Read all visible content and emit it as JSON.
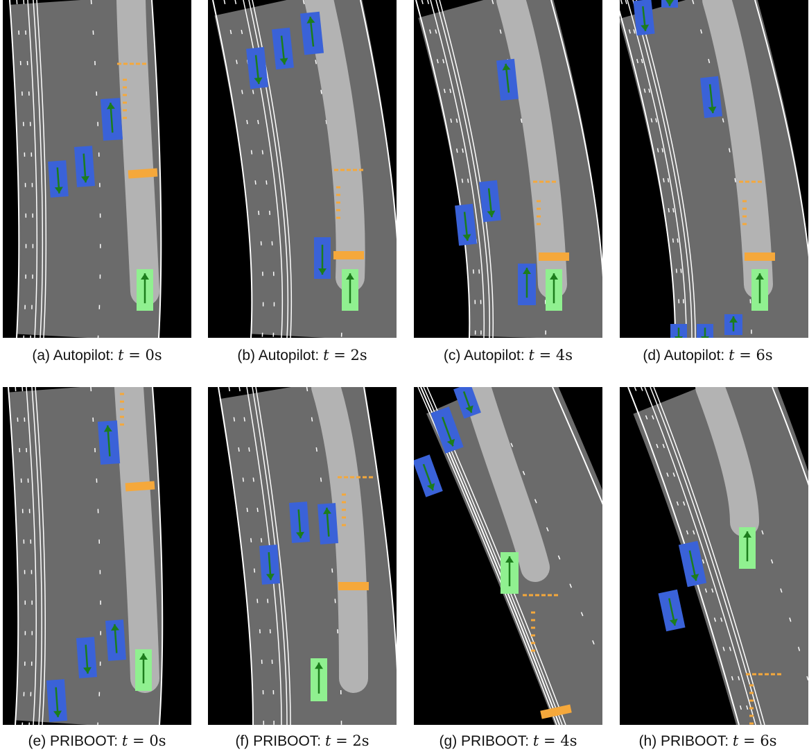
{
  "panels": [
    {
      "tag": "(a)",
      "method": "Autopilot:",
      "time": "0",
      "unit": "s"
    },
    {
      "tag": "(b)",
      "method": "Autopilot:",
      "time": "2",
      "unit": "s"
    },
    {
      "tag": "(c)",
      "method": "Autopilot:",
      "time": "4",
      "unit": "s"
    },
    {
      "tag": "(d)",
      "method": "Autopilot:",
      "time": "6",
      "unit": "s"
    },
    {
      "tag": "(e)",
      "method": "PRIBOOT:",
      "time": "0",
      "unit": "s"
    },
    {
      "tag": "(f)",
      "method": "PRIBOOT:",
      "time": "2",
      "unit": "s"
    },
    {
      "tag": "(g)",
      "method": "PRIBOOT:",
      "time": "4",
      "unit": "s"
    },
    {
      "tag": "(h)",
      "method": "PRIBOOT:",
      "time": "6",
      "unit": "s"
    }
  ],
  "time_symbol": "t",
  "colors": {
    "background": "#000000",
    "road": "#6b6b6b",
    "lane_marking": "#ffffff",
    "route": "#b3b3b3",
    "ego_vehicle": "#90f090",
    "other_vehicle": "#3a62d8",
    "heading_arrow": "#1c7d1c",
    "stop_line": "#f5a83b"
  }
}
